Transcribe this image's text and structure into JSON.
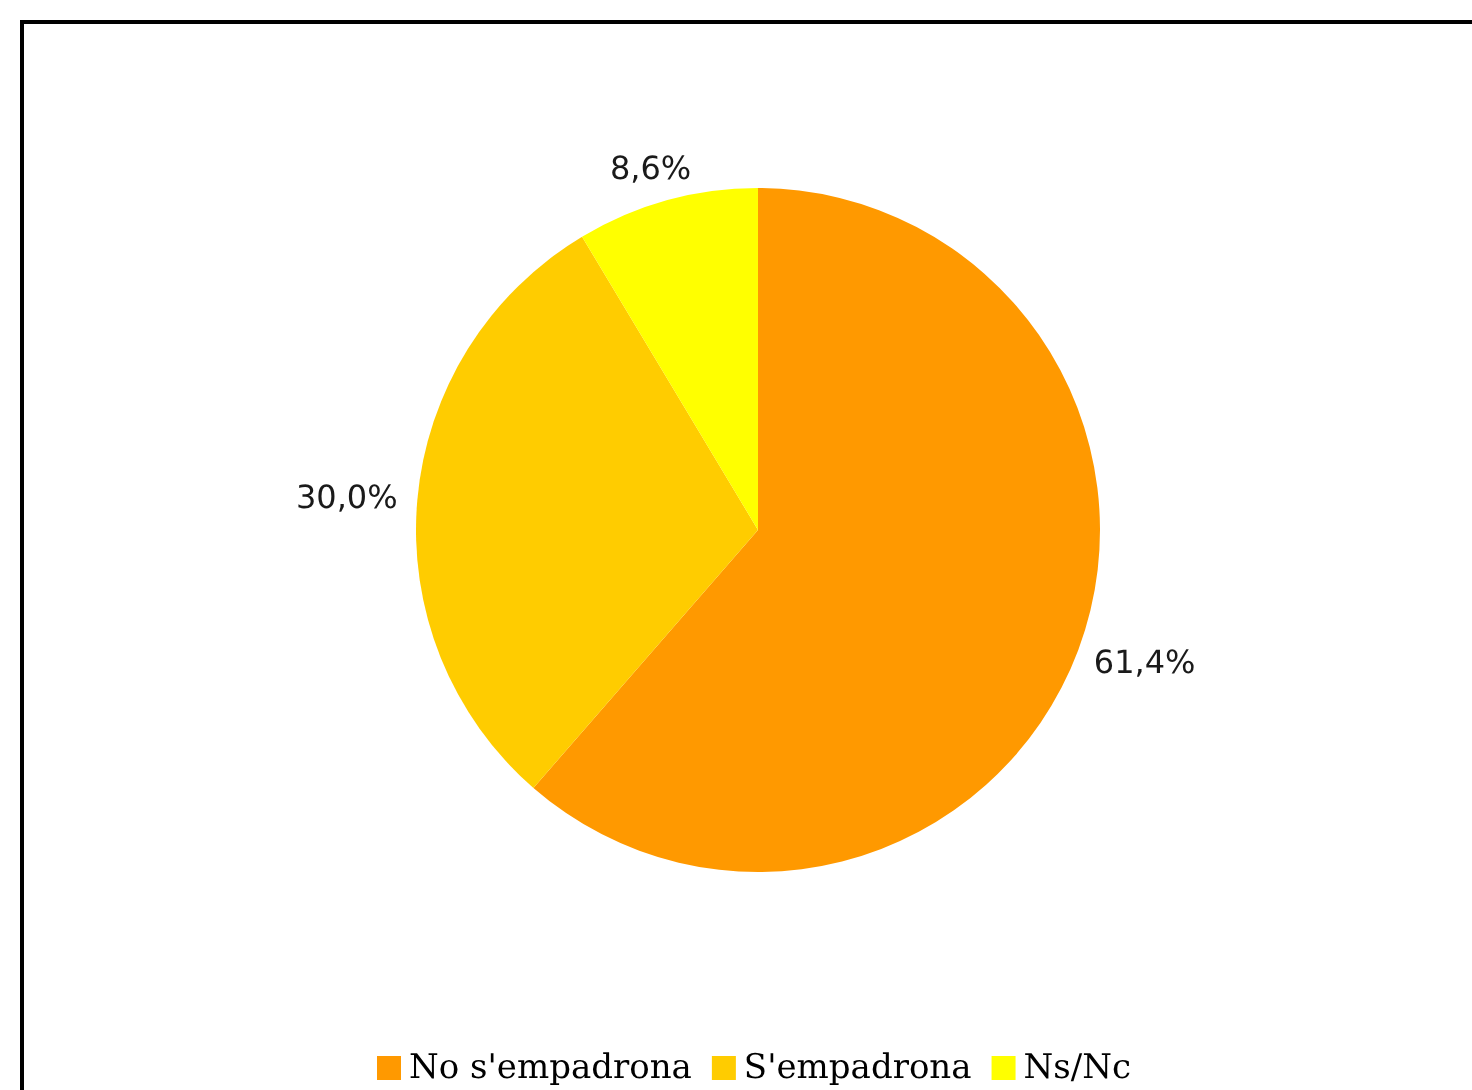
{
  "chart_data": {
    "type": "pie",
    "categories": [
      "No s'empadrona",
      "S'empadrona",
      "Ns/Nc"
    ],
    "values": [
      61.4,
      30.0,
      8.6
    ],
    "colors": [
      "#ff9900",
      "#ffcc00",
      "#ffff00"
    ],
    "value_labels": [
      "61,4%",
      "30,0%",
      "8,6%"
    ],
    "legend": "bottom"
  }
}
